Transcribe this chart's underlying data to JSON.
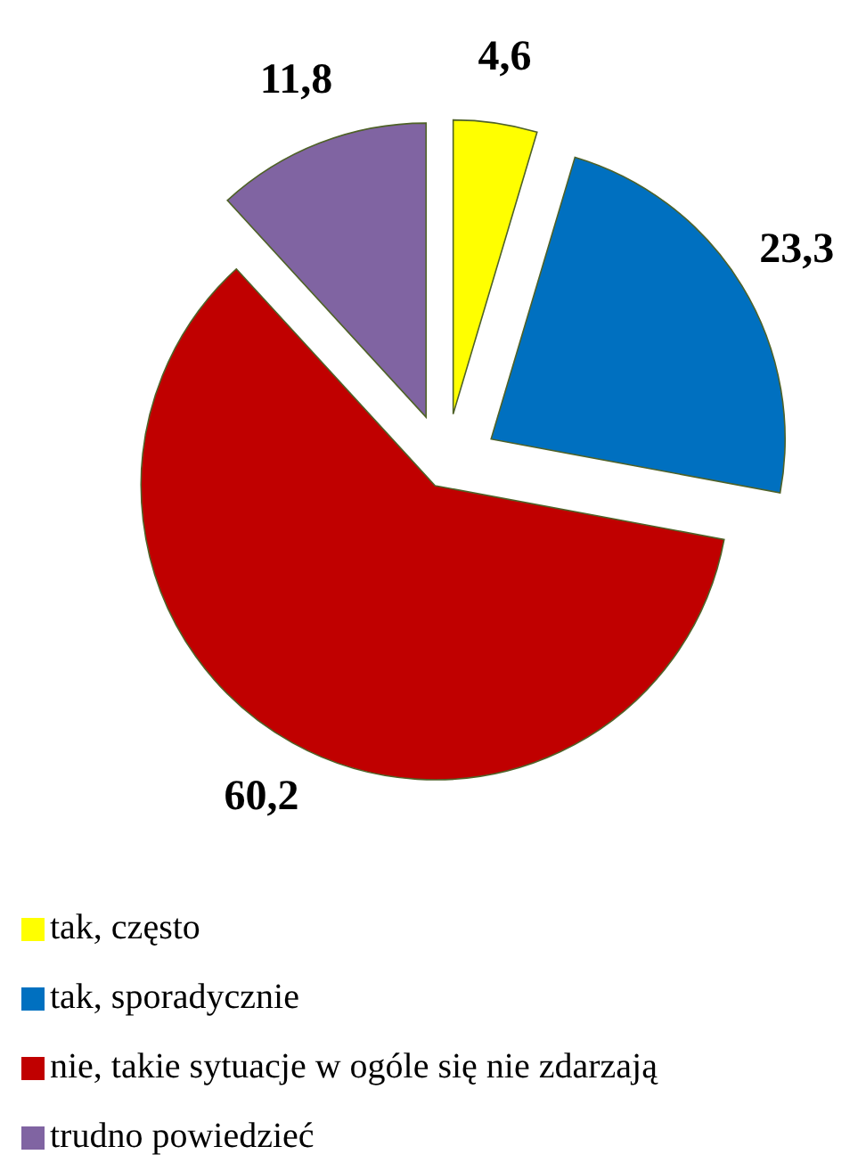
{
  "chart_data": {
    "type": "pie",
    "categories": [
      "tak, często",
      "tak, sporadycznie",
      "nie, takie sytuacje w ogóle się nie zdarzają",
      "trudno powiedzieć"
    ],
    "values": [
      4.6,
      23.3,
      60.2,
      11.8
    ],
    "value_labels": [
      "4,6",
      "23,3",
      "60,2",
      "11,8"
    ],
    "colors": [
      "#ffff00",
      "#0070c0",
      "#c00000",
      "#8064a2"
    ],
    "legend": "bottom"
  }
}
